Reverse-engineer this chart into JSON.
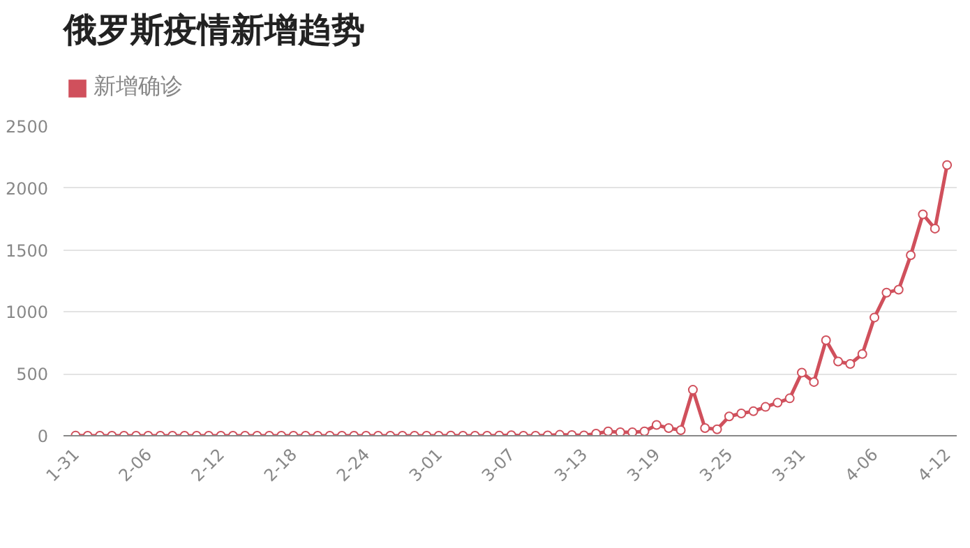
{
  "chart_data": {
    "type": "line",
    "title": "俄罗斯疫情新增趋势",
    "categories": [
      "1-31",
      null,
      null,
      null,
      null,
      null,
      "2-06",
      null,
      null,
      null,
      null,
      null,
      "2-12",
      null,
      null,
      null,
      null,
      null,
      "2-18",
      null,
      null,
      null,
      null,
      null,
      "2-24",
      null,
      null,
      null,
      null,
      null,
      "3-01",
      null,
      null,
      null,
      null,
      null,
      "3-07",
      null,
      null,
      null,
      null,
      null,
      "3-13",
      null,
      null,
      null,
      null,
      null,
      "3-19",
      null,
      null,
      null,
      null,
      null,
      "3-25",
      null,
      null,
      null,
      null,
      null,
      "3-31",
      null,
      null,
      null,
      null,
      null,
      "4-06",
      null,
      null,
      null,
      null,
      null,
      "4-12"
    ],
    "series": [
      {
        "name": "新增确诊",
        "color": "#d0505c",
        "values": [
          2,
          0,
          0,
          0,
          0,
          0,
          0,
          0,
          0,
          0,
          0,
          0,
          0,
          0,
          0,
          0,
          0,
          0,
          0,
          0,
          0,
          0,
          0,
          0,
          0,
          0,
          0,
          0,
          0,
          0,
          0,
          1,
          0,
          0,
          0,
          1,
          4,
          0,
          0,
          3,
          8,
          6,
          3,
          17,
          35,
          28,
          28,
          35,
          87,
          62,
          45,
          371,
          62,
          52,
          156,
          180,
          198,
          233,
          267,
          302,
          510,
          434,
          771,
          600,
          580,
          660,
          955,
          1156,
          1180,
          1458,
          1788,
          1673,
          2186
        ]
      }
    ],
    "ylim": [
      0,
      2500
    ],
    "yticks": [
      0,
      500,
      1000,
      1500,
      2000,
      2500
    ],
    "grid": "y",
    "legend": "top left",
    "marker": "circle",
    "line_style": "solid"
  }
}
